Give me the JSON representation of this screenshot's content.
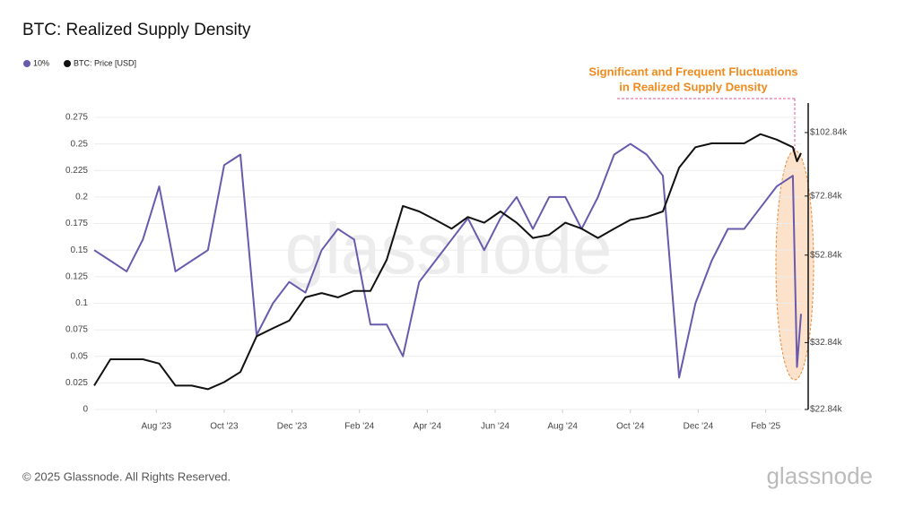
{
  "chart_data": {
    "type": "line",
    "title": "BTC: Realized Supply Density",
    "annotation": [
      "Significant and Frequent Fluctuations",
      "in Realized Supply Density"
    ],
    "watermark": "glassnode",
    "footer": "© 2025 Glassnode. All Rights Reserved.",
    "logo": "glassnode",
    "x": [
      2023.43,
      2023.47,
      2023.51,
      2023.55,
      2023.59,
      2023.63,
      2023.67,
      2023.71,
      2023.75,
      2023.79,
      2023.83,
      2023.87,
      2023.91,
      2023.95,
      2023.99,
      2024.03,
      2024.07,
      2024.11,
      2024.15,
      2024.19,
      2024.23,
      2024.27,
      2024.31,
      2024.35,
      2024.39,
      2024.43,
      2024.47,
      2024.51,
      2024.55,
      2024.59,
      2024.63,
      2024.67,
      2024.71,
      2024.75,
      2024.79,
      2024.83,
      2024.87,
      2024.91,
      2024.95,
      2024.99,
      2025.03,
      2025.07,
      2025.11,
      2025.15,
      2025.16,
      2025.17
    ],
    "xlim": [
      2023.43,
      2025.17
    ],
    "xticks": [
      {
        "value": 2023.583,
        "label": "Aug '23"
      },
      {
        "value": 2023.75,
        "label": "Oct '23"
      },
      {
        "value": 2023.917,
        "label": "Dec '23"
      },
      {
        "value": 2024.083,
        "label": "Feb '24"
      },
      {
        "value": 2024.25,
        "label": "Apr '24"
      },
      {
        "value": 2024.417,
        "label": "Jun '24"
      },
      {
        "value": 2024.583,
        "label": "Aug '24"
      },
      {
        "value": 2024.75,
        "label": "Oct '24"
      },
      {
        "value": 2024.917,
        "label": "Dec '24"
      },
      {
        "value": 2025.083,
        "label": "Feb '25"
      }
    ],
    "ylim": [
      0,
      0.275
    ],
    "yticks": [
      0,
      0.025,
      0.05,
      0.075,
      0.1,
      0.125,
      0.15,
      0.175,
      0.2,
      0.225,
      0.25,
      0.275
    ],
    "y2lim": [
      22840,
      111700
    ],
    "y2scale": "log",
    "y2ticks": [
      {
        "value": 22840,
        "label": "$22.84k"
      },
      {
        "value": 32840,
        "label": "$32.84k"
      },
      {
        "value": 52840,
        "label": "$52.84k"
      },
      {
        "value": 72840,
        "label": "$72.84k"
      },
      {
        "value": 102840,
        "label": "$102.84k"
      }
    ],
    "grid": true,
    "series": [
      {
        "name": "10%",
        "color": "#6a5aad",
        "values": [
          0.15,
          0.14,
          0.13,
          0.16,
          0.21,
          0.13,
          0.14,
          0.15,
          0.23,
          0.24,
          0.07,
          0.1,
          0.12,
          0.11,
          0.15,
          0.17,
          0.16,
          0.08,
          0.08,
          0.05,
          0.12,
          0.14,
          0.16,
          0.18,
          0.15,
          0.18,
          0.2,
          0.17,
          0.2,
          0.2,
          0.17,
          0.2,
          0.24,
          0.25,
          0.24,
          0.22,
          0.03,
          0.1,
          0.14,
          0.17,
          0.17,
          0.19,
          0.21,
          0.22,
          0.04,
          0.09
        ]
      },
      {
        "name": "BTC: Price [USD]",
        "color": "#111111",
        "axis": "y2",
        "values": [
          26000,
          30000,
          30000,
          30000,
          29300,
          26000,
          26000,
          25500,
          26500,
          28000,
          34000,
          35500,
          37000,
          42000,
          43000,
          42000,
          43500,
          43500,
          51500,
          69000,
          67000,
          64000,
          61000,
          65000,
          63000,
          67000,
          63000,
          58000,
          59000,
          63000,
          61000,
          58000,
          61000,
          64000,
          65000,
          67000,
          85000,
          95000,
          97000,
          97000,
          97000,
          102000,
          99000,
          95000,
          88000,
          92000
        ]
      }
    ]
  }
}
